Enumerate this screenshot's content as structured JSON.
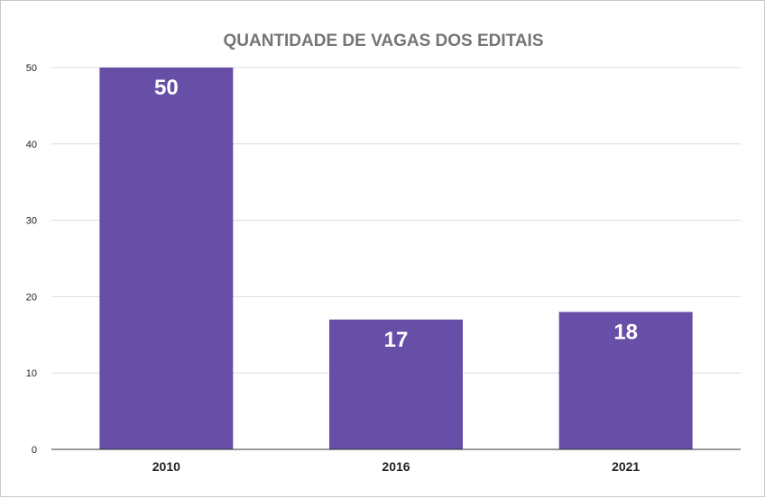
{
  "chart_data": {
    "type": "bar",
    "title": "QUANTIDADE DE VAGAS DOS EDITAIS",
    "xlabel": "",
    "ylabel": "",
    "categories": [
      "2010",
      "2016",
      "2021"
    ],
    "values": [
      50,
      17,
      18
    ],
    "data_labels": [
      "50",
      "17",
      "18"
    ],
    "yticks": [
      "0",
      "10",
      "20",
      "30",
      "40",
      "50"
    ],
    "ylim": [
      0,
      50
    ],
    "grid": true,
    "legend": "none",
    "bar_color": "#674ea7",
    "title_color": "#757575"
  }
}
